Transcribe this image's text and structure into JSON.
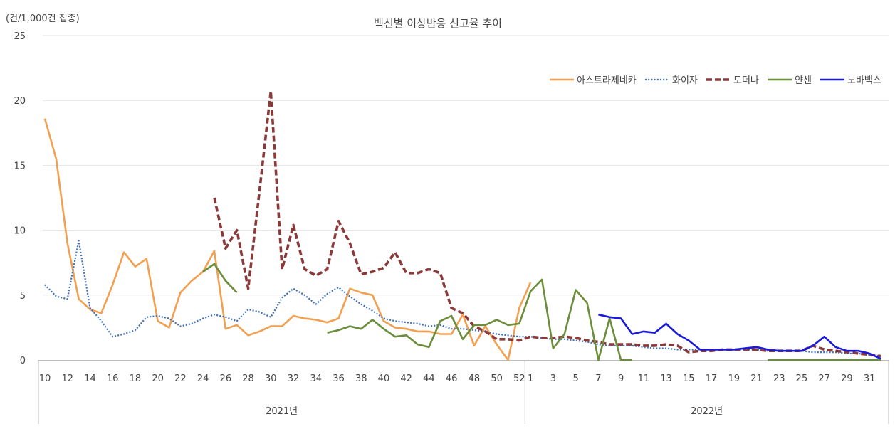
{
  "chart_data": {
    "type": "line",
    "title": "백신별 이상반응 신고율 추이",
    "unit_label": "(건/1,000건 접종)",
    "ylim": [
      0,
      25
    ],
    "yticks": [
      0,
      5,
      10,
      15,
      20,
      25
    ],
    "grid": "horizontal",
    "legend_position": "top-right",
    "categories": [
      "10",
      "11",
      "12",
      "13",
      "14",
      "15",
      "16",
      "17",
      "18",
      "19",
      "20",
      "21",
      "22",
      "23",
      "24",
      "25",
      "26",
      "27",
      "28",
      "29",
      "30",
      "31",
      "32",
      "33",
      "34",
      "35",
      "36",
      "37",
      "38",
      "39",
      "40",
      "41",
      "42",
      "43",
      "44",
      "45",
      "46",
      "47",
      "48",
      "49",
      "50",
      "51",
      "52",
      "1",
      "2",
      "3",
      "4",
      "5",
      "6",
      "7",
      "8",
      "9",
      "10",
      "11",
      "12",
      "13",
      "14",
      "15",
      "16",
      "17",
      "18",
      "19",
      "20",
      "21",
      "22",
      "23",
      "24",
      "25",
      "26",
      "27",
      "28",
      "29",
      "30",
      "31",
      "32"
    ],
    "x_tick_labels": [
      "10",
      "",
      "12",
      "",
      "14",
      "",
      "16",
      "",
      "18",
      "",
      "20",
      "",
      "22",
      "",
      "24",
      "",
      "26",
      "",
      "28",
      "",
      "30",
      "",
      "32",
      "",
      "34",
      "",
      "36",
      "",
      "38",
      "",
      "40",
      "",
      "42",
      "",
      "44",
      "",
      "46",
      "",
      "48",
      "",
      "50",
      "",
      "52",
      "1",
      "",
      "3",
      "",
      "5",
      "",
      "7",
      "",
      "9",
      "",
      "11",
      "",
      "13",
      "",
      "15",
      "",
      "17",
      "",
      "19",
      "",
      "21",
      "",
      "23",
      "",
      "25",
      "",
      "27",
      "",
      "29",
      "",
      "31",
      ""
    ],
    "groups": [
      {
        "label": "2021년",
        "count": 43
      },
      {
        "label": "2022년",
        "count": 32
      }
    ],
    "series": [
      {
        "name": "아스트라제네카",
        "color": "#f0a050",
        "style": "solid",
        "values": [
          18.6,
          15.5,
          9.0,
          4.7,
          3.9,
          3.6,
          5.8,
          8.3,
          7.2,
          7.8,
          3.0,
          2.5,
          5.2,
          6.1,
          6.8,
          8.4,
          2.4,
          2.7,
          1.9,
          2.2,
          2.6,
          2.6,
          3.4,
          3.2,
          3.1,
          2.9,
          3.2,
          5.5,
          5.2,
          5.0,
          3.0,
          2.5,
          2.4,
          2.2,
          2.2,
          2.0,
          2.0,
          3.5,
          1.1,
          2.6,
          1.2,
          0.0,
          4.0,
          6.0,
          null,
          null,
          null,
          null,
          null,
          null,
          null,
          null,
          null,
          null,
          null,
          null,
          null,
          null,
          null,
          null,
          null,
          null,
          null,
          null,
          null,
          null,
          null,
          null,
          null,
          null,
          null,
          null,
          null,
          null,
          null
        ]
      },
      {
        "name": "화이자",
        "color": "#3e6fb8",
        "style": "dotted",
        "values": [
          5.8,
          4.9,
          4.7,
          9.2,
          4.0,
          3.0,
          1.8,
          2.0,
          2.3,
          3.3,
          3.4,
          3.2,
          2.6,
          2.8,
          3.2,
          3.5,
          3.3,
          3.0,
          3.9,
          3.7,
          3.3,
          4.8,
          5.5,
          5.0,
          4.3,
          5.1,
          5.6,
          4.9,
          4.3,
          3.8,
          3.2,
          3.0,
          2.9,
          2.8,
          2.6,
          2.7,
          2.4,
          2.4,
          2.3,
          2.2,
          2.0,
          1.9,
          1.8,
          1.8,
          1.7,
          1.6,
          1.6,
          1.5,
          1.4,
          1.2,
          1.1,
          1.1,
          1.1,
          1.0,
          0.9,
          0.9,
          0.8,
          0.8,
          0.8,
          0.8,
          0.8,
          0.8,
          0.8,
          0.8,
          0.7,
          0.7,
          0.7,
          0.7,
          0.6,
          0.6,
          0.6,
          0.5,
          0.5,
          0.4,
          0.3
        ]
      },
      {
        "name": "모더나",
        "color": "#8b3a3a",
        "style": "dashed",
        "values": [
          null,
          null,
          null,
          null,
          null,
          null,
          null,
          null,
          null,
          null,
          null,
          null,
          null,
          null,
          null,
          12.5,
          8.6,
          10.0,
          5.5,
          13.0,
          20.7,
          7.0,
          10.4,
          7.0,
          6.5,
          7.0,
          10.7,
          9.0,
          6.6,
          6.8,
          7.1,
          8.3,
          6.7,
          6.7,
          7.0,
          6.7,
          4.0,
          3.6,
          2.6,
          2.2,
          1.6,
          1.6,
          1.5,
          1.8,
          1.7,
          1.7,
          1.8,
          1.7,
          1.5,
          1.4,
          1.2,
          1.2,
          1.2,
          1.1,
          1.1,
          1.2,
          1.1,
          0.6,
          0.7,
          0.7,
          0.8,
          0.8,
          0.8,
          0.8,
          0.7,
          0.7,
          0.7,
          0.7,
          1.1,
          0.8,
          0.7,
          0.6,
          0.5,
          0.4,
          0.3
        ]
      },
      {
        "name": "얀센",
        "color": "#6b8e3a",
        "style": "solid",
        "values": [
          null,
          null,
          null,
          null,
          null,
          null,
          null,
          null,
          null,
          null,
          null,
          null,
          null,
          null,
          6.8,
          7.4,
          6.1,
          5.2,
          null,
          null,
          null,
          null,
          null,
          null,
          null,
          2.1,
          2.3,
          2.6,
          2.4,
          3.1,
          2.4,
          1.8,
          1.9,
          1.2,
          1.0,
          3.0,
          3.4,
          1.6,
          2.7,
          2.7,
          3.1,
          2.7,
          2.8,
          5.3,
          6.2,
          0.9,
          2.0,
          5.4,
          4.4,
          0.0,
          3.2,
          0.0,
          0.0,
          null,
          null,
          null,
          null,
          null,
          null,
          null,
          null,
          null,
          null,
          null,
          0.0,
          0.0,
          0.0,
          0.0,
          0.0,
          0.0,
          0.0,
          0.0,
          0.0,
          0.0,
          0.0
        ]
      },
      {
        "name": "노바백스",
        "color": "#1a1adb",
        "style": "solid",
        "values": [
          null,
          null,
          null,
          null,
          null,
          null,
          null,
          null,
          null,
          null,
          null,
          null,
          null,
          null,
          null,
          null,
          null,
          null,
          null,
          null,
          null,
          null,
          null,
          null,
          null,
          null,
          null,
          null,
          null,
          null,
          null,
          null,
          null,
          null,
          null,
          null,
          null,
          null,
          null,
          null,
          null,
          null,
          null,
          null,
          null,
          null,
          null,
          null,
          null,
          3.5,
          3.3,
          3.2,
          2.0,
          2.2,
          2.1,
          2.8,
          2.0,
          1.5,
          0.8,
          0.8,
          0.8,
          0.8,
          0.9,
          1.0,
          0.8,
          0.7,
          0.7,
          0.7,
          1.1,
          1.8,
          1.0,
          0.7,
          0.7,
          0.5,
          0.1
        ]
      }
    ]
  }
}
